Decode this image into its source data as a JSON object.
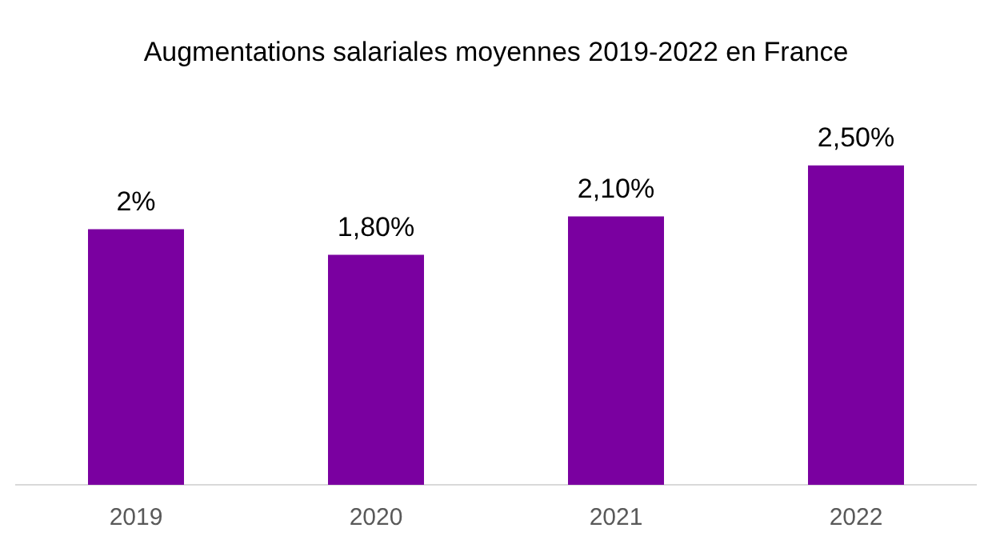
{
  "chart_data": {
    "type": "bar",
    "title": "Augmentations salariales moyennes 2019-2022 en France",
    "categories": [
      "2019",
      "2020",
      "2021",
      "2022"
    ],
    "values": [
      2,
      1.8,
      2.1,
      2.5
    ],
    "value_labels": [
      "2%",
      "1,80%",
      "2,10%",
      "2,50%"
    ],
    "color": "#7a00a0",
    "grid": false,
    "legend": false
  }
}
